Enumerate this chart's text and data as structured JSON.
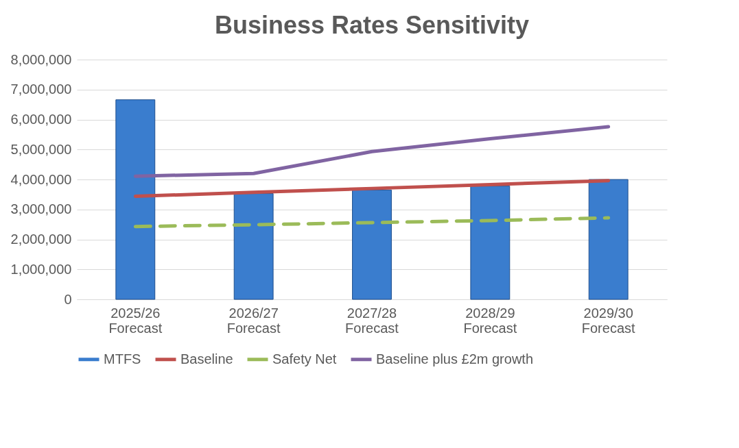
{
  "chart_data": {
    "type": "bar",
    "title": "Business Rates Sensitivity",
    "categories": [
      "2025/26 Forecast",
      "2026/27 Forecast",
      "2027/28 Forecast",
      "2028/29 Forecast",
      "2029/30 Forecast"
    ],
    "series": [
      {
        "name": "MTFS",
        "color": "#3a7dce",
        "values": [
          6660000,
          3530000,
          3650000,
          3780000,
          4000000
        ]
      },
      {
        "name": "Baseline",
        "type": "line",
        "line_style": "solid",
        "color": "#c0504d",
        "values": [
          3440000,
          3570000,
          3700000,
          3830000,
          3960000
        ]
      },
      {
        "name": "Safety Net",
        "type": "line",
        "color": "#9bbb59",
        "line_style": "dashed",
        "values": [
          2430000,
          2490000,
          2560000,
          2630000,
          2720000
        ]
      },
      {
        "name": "Baseline plus £2m growth",
        "type": "line",
        "line_style": "solid",
        "color": "#8064a2",
        "values": [
          4110000,
          4200000,
          4930000,
          5360000,
          5760000
        ]
      }
    ],
    "ylim": [
      0,
      8000000
    ],
    "yticks": [
      0,
      {
        "value": 1000000,
        "label": "1,000,000"
      },
      {
        "value": 2000000,
        "label": "2,000,000"
      },
      {
        "value": 3000000,
        "label": "3,000,000"
      },
      {
        "value": 4000000,
        "label": "4,000,000"
      },
      {
        "value": 5000000,
        "label": "5,000,000"
      },
      {
        "value": 6000000,
        "label": "6,000,000"
      },
      {
        "value": 7000000,
        "label": "7,000,000"
      },
      {
        "value": 8000000,
        "label": "8,000,000"
      }
    ],
    "grid": "y",
    "legend": "bottom"
  }
}
